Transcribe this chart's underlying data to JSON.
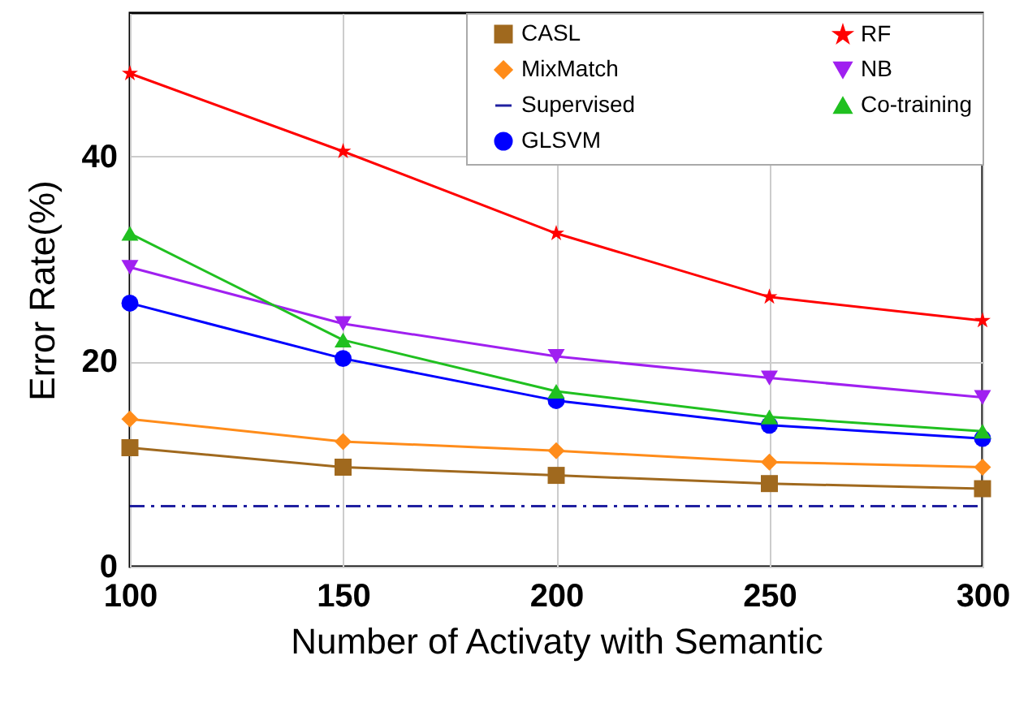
{
  "chart_data": {
    "type": "line",
    "xlabel": "Number of Activaty with Semantic",
    "ylabel": "Error Rate(%)",
    "x": [
      100,
      150,
      200,
      250,
      300
    ],
    "xlim": [
      100,
      300
    ],
    "xticks": [
      100,
      150,
      200,
      250,
      300
    ],
    "ylim": [
      0,
      54
    ],
    "yticks": [
      0,
      20,
      40
    ],
    "grid": true,
    "legend": "top right",
    "line_style": "solid",
    "series": [
      {
        "name": "CASL",
        "color": "#a0691e",
        "marker": "square",
        "values": [
          11.6,
          9.7,
          8.9,
          8.1,
          7.6
        ]
      },
      {
        "name": "MixMatch",
        "color": "#ff8c1a",
        "marker": "diamond",
        "values": [
          14.4,
          12.2,
          11.3,
          10.2,
          9.7
        ]
      },
      {
        "name": "Supervised",
        "color": "#2020a0",
        "marker": "none",
        "line_style": "dashdot",
        "values": [
          5.9,
          5.9,
          5.9,
          5.9,
          5.9
        ]
      },
      {
        "name": "GLSVM",
        "color": "#0000ff",
        "marker": "circle",
        "values": [
          25.7,
          20.3,
          16.2,
          13.8,
          12.5
        ]
      },
      {
        "name": "RF",
        "color": "#ff0000",
        "marker": "star",
        "values": [
          48.1,
          40.5,
          32.5,
          26.3,
          24.0
        ]
      },
      {
        "name": "NB",
        "color": "#a020f0",
        "marker": "triangle-down",
        "values": [
          29.2,
          23.7,
          20.5,
          18.4,
          16.5
        ]
      },
      {
        "name": "Co-training",
        "color": "#20c020",
        "marker": "triangle",
        "values": [
          32.5,
          22.1,
          17.1,
          14.6,
          13.2
        ]
      }
    ]
  }
}
